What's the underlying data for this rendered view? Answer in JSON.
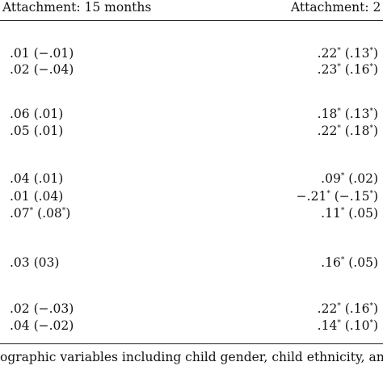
{
  "table": {
    "headers": [
      "Attachment: 15 months",
      "Attachment: 2"
    ],
    "rows": [
      {
        "c1": [
          ".01 (−.01)"
        ],
        "c2": [
          ".22",
          "*",
          " (.13",
          "*",
          ")"
        ]
      },
      {
        "c1": [
          ".02 (−.04)"
        ],
        "c2": [
          ".23",
          "*",
          " (.16",
          "*",
          ")"
        ]
      },
      {
        "c1": [
          ".06 (.01)"
        ],
        "c2": [
          ".18",
          "*",
          " (.13",
          "*",
          ")"
        ]
      },
      {
        "c1": [
          ".05 (.01)"
        ],
        "c2": [
          ".22",
          "*",
          " (.18",
          "*",
          ")"
        ]
      },
      {
        "c1": [
          ".04 (.01)"
        ],
        "c2": [
          ".09",
          "*",
          " (.02)"
        ]
      },
      {
        "c1": [
          ".01 (.04)"
        ],
        "c2": [
          "−.21",
          "*",
          " (−.15",
          "*",
          ")"
        ]
      },
      {
        "c1": [
          ".07",
          "*",
          " (.08",
          "*",
          ")"
        ],
        "c2": [
          ".11",
          "*",
          " (.05)"
        ]
      },
      {
        "c1": [
          ".03 (03)"
        ],
        "c2": [
          ".16",
          "*",
          " (.05)"
        ]
      },
      {
        "c1": [
          ".02 (−.03)"
        ],
        "c2": [
          ".22",
          "*",
          " (.16",
          "*",
          ")"
        ]
      },
      {
        "c1": [
          ".04 (−.02)"
        ],
        "c2": [
          ".14",
          "*",
          " (.10",
          "*",
          ")"
        ]
      }
    ]
  },
  "footnote": "ographic variables including child gender, child ethnicity, an"
}
